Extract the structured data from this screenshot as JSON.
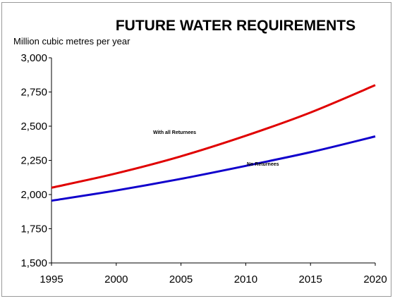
{
  "chart_data": {
    "type": "line",
    "title": "FUTURE WATER REQUIREMENTS",
    "ylabel": "Million cubic metres per year",
    "xlabel": "",
    "x": [
      1995,
      2000,
      2005,
      2010,
      2015,
      2020
    ],
    "x_tick_labels": [
      "1995",
      "2000",
      "2005",
      "2010",
      "2015",
      "2020"
    ],
    "y_tick_labels": [
      "3,000",
      "2,750",
      "2,500",
      "2,250",
      "2,000",
      "1,750",
      "1,500"
    ],
    "y_ticks": [
      3000,
      2750,
      2500,
      2250,
      2000,
      1750,
      1500
    ],
    "xlim": [
      1995,
      2020
    ],
    "ylim": [
      1500,
      3000
    ],
    "grid": false,
    "legend": "none",
    "series": [
      {
        "name": "With all Returnees",
        "color": "#e00000",
        "values": [
          2050,
          2155,
          2280,
          2430,
          2600,
          2800
        ]
      },
      {
        "name": "No Returnees",
        "color": "#1000cc",
        "values": [
          1955,
          2030,
          2115,
          2210,
          2310,
          2425
        ]
      }
    ],
    "annotations": [
      "With all Returnees",
      "No Returnees"
    ]
  }
}
